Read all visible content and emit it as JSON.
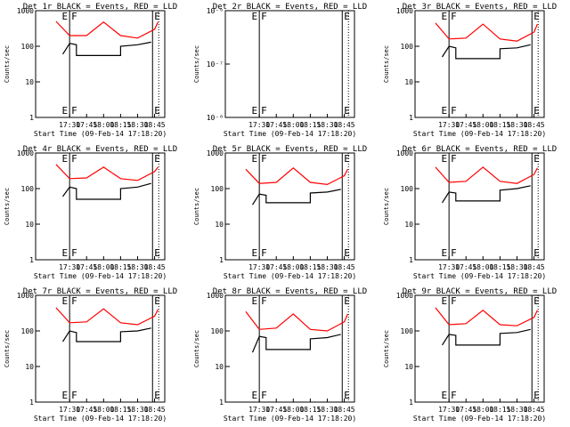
{
  "figure": {
    "common_xlabel": "Start Time (09-Feb-14 17:18:20)",
    "common_ylabel": "Counts/sec"
  },
  "chart_data": [
    {
      "type": "line",
      "title": "Det 1r BLACK = Events, RED = LLD",
      "ylim": [
        1,
        1000
      ],
      "yscale": "log",
      "yticks": [
        1,
        10,
        100,
        1000
      ],
      "ytick_labels": [
        "1",
        "10",
        "100",
        "1000"
      ],
      "x_ticks": [
        "17:30",
        "17:45",
        "18:00",
        "18:15",
        "18:30",
        "18:45"
      ],
      "flags": [
        "E",
        "F",
        "E"
      ],
      "series": [
        {
          "color": "#ff0000",
          "kind": "lld",
          "x": [
            17.3,
            17.5,
            17.75,
            18.0,
            18.25,
            18.5,
            18.75,
            18.8
          ],
          "y": [
            500,
            200,
            200,
            480,
            200,
            170,
            300,
            480
          ]
        },
        {
          "color": "#000000",
          "kind": "events",
          "x": [
            17.4,
            17.5,
            17.6,
            17.6,
            18.25,
            18.25,
            18.5,
            18.7
          ],
          "y": [
            60,
            120,
            110,
            55,
            55,
            100,
            110,
            130
          ]
        }
      ]
    },
    {
      "type": "line",
      "title": "Det 2r BLACK = Events, RED = LLD",
      "ylim": [
        1e-08,
        1e-06
      ],
      "yscale": "log",
      "yticks": [
        1e-08,
        1e-07,
        1e-06
      ],
      "ytick_labels": [
        "10⁻⁸",
        "10⁻⁷",
        "10⁻⁶"
      ],
      "x_ticks": [
        "17:30",
        "17:45",
        "18:00",
        "18:15",
        "18:30",
        "18:45"
      ],
      "flags": [
        "E",
        "F",
        "E"
      ],
      "series": []
    },
    {
      "type": "line",
      "title": "Det 3r BLACK = Events, RED = LLD",
      "ylim": [
        1,
        1000
      ],
      "yscale": "log",
      "yticks": [
        1,
        10,
        100,
        1000
      ],
      "ytick_labels": [
        "1",
        "10",
        "100",
        "1000"
      ],
      "x_ticks": [
        "17:30",
        "17:45",
        "18:00",
        "18:15",
        "18:30",
        "18:45"
      ],
      "flags": [
        "E",
        "F",
        "E"
      ],
      "series": [
        {
          "color": "#ff0000",
          "kind": "lld",
          "x": [
            17.3,
            17.5,
            17.75,
            18.0,
            18.25,
            18.5,
            18.75,
            18.8
          ],
          "y": [
            450,
            160,
            170,
            420,
            160,
            140,
            250,
            420
          ]
        },
        {
          "color": "#000000",
          "kind": "events",
          "x": [
            17.4,
            17.5,
            17.6,
            17.6,
            18.25,
            18.25,
            18.5,
            18.7
          ],
          "y": [
            50,
            100,
            90,
            45,
            45,
            85,
            90,
            110
          ]
        }
      ]
    },
    {
      "type": "line",
      "title": "Det 4r BLACK = Events, RED = LLD",
      "ylim": [
        1,
        1000
      ],
      "yscale": "log",
      "yticks": [
        1,
        10,
        100,
        1000
      ],
      "ytick_labels": [
        "1",
        "10",
        "100",
        "1000"
      ],
      "x_ticks": [
        "17:30",
        "17:45",
        "18:00",
        "18:15",
        "18:30",
        "18:45"
      ],
      "flags": [
        "E",
        "F",
        "E"
      ],
      "series": [
        {
          "color": "#ff0000",
          "kind": "lld",
          "x": [
            17.3,
            17.5,
            17.75,
            18.0,
            18.25,
            18.5,
            18.75,
            18.8
          ],
          "y": [
            480,
            190,
            200,
            400,
            190,
            170,
            300,
            400
          ]
        },
        {
          "color": "#000000",
          "kind": "events",
          "x": [
            17.4,
            17.5,
            17.6,
            17.6,
            18.25,
            18.25,
            18.5,
            18.7
          ],
          "y": [
            60,
            110,
            100,
            50,
            50,
            100,
            110,
            140
          ]
        }
      ]
    },
    {
      "type": "line",
      "title": "Det 5r BLACK = Events, RED = LLD",
      "ylim": [
        1,
        1000
      ],
      "yscale": "log",
      "yticks": [
        1,
        10,
        100,
        1000
      ],
      "ytick_labels": [
        "1",
        "10",
        "100",
        "1000"
      ],
      "x_ticks": [
        "17:30",
        "17:45",
        "18:00",
        "18:15",
        "18:30",
        "18:45"
      ],
      "flags": [
        "E",
        "F",
        "E"
      ],
      "series": [
        {
          "color": "#ff0000",
          "kind": "lld",
          "x": [
            17.3,
            17.5,
            17.75,
            18.0,
            18.25,
            18.5,
            18.75,
            18.8
          ],
          "y": [
            350,
            140,
            150,
            380,
            150,
            130,
            230,
            350
          ]
        },
        {
          "color": "#000000",
          "kind": "events",
          "x": [
            17.4,
            17.5,
            17.6,
            17.6,
            18.25,
            18.25,
            18.5,
            18.7
          ],
          "y": [
            35,
            70,
            65,
            40,
            40,
            75,
            80,
            95
          ]
        }
      ]
    },
    {
      "type": "line",
      "title": "Det 6r BLACK = Events, RED = LLD",
      "ylim": [
        1,
        1000
      ],
      "yscale": "log",
      "yticks": [
        1,
        10,
        100,
        1000
      ],
      "ytick_labels": [
        "1",
        "10",
        "100",
        "1000"
      ],
      "x_ticks": [
        "17:30",
        "17:45",
        "18:00",
        "18:15",
        "18:30",
        "18:45"
      ],
      "flags": [
        "E",
        "F",
        "E"
      ],
      "series": [
        {
          "color": "#ff0000",
          "kind": "lld",
          "x": [
            17.3,
            17.5,
            17.75,
            18.0,
            18.25,
            18.5,
            18.75,
            18.8
          ],
          "y": [
            400,
            150,
            160,
            400,
            160,
            140,
            250,
            380
          ]
        },
        {
          "color": "#000000",
          "kind": "events",
          "x": [
            17.4,
            17.5,
            17.6,
            17.6,
            18.25,
            18.25,
            18.5,
            18.7
          ],
          "y": [
            40,
            80,
            75,
            45,
            45,
            90,
            100,
            120
          ]
        }
      ]
    },
    {
      "type": "line",
      "title": "Det 7r BLACK = Events, RED = LLD",
      "ylim": [
        1,
        1000
      ],
      "yscale": "log",
      "yticks": [
        1,
        10,
        100,
        1000
      ],
      "ytick_labels": [
        "1",
        "10",
        "100",
        "1000"
      ],
      "x_ticks": [
        "17:30",
        "17:45",
        "18:00",
        "18:15",
        "18:30",
        "18:45"
      ],
      "flags": [
        "E",
        "F",
        "E"
      ],
      "series": [
        {
          "color": "#ff0000",
          "kind": "lld",
          "x": [
            17.3,
            17.5,
            17.75,
            18.0,
            18.25,
            18.5,
            18.75,
            18.8
          ],
          "y": [
            450,
            170,
            180,
            420,
            170,
            150,
            260,
            400
          ]
        },
        {
          "color": "#000000",
          "kind": "events",
          "x": [
            17.4,
            17.5,
            17.6,
            17.6,
            18.25,
            18.25,
            18.5,
            18.7
          ],
          "y": [
            50,
            100,
            90,
            50,
            50,
            95,
            100,
            120
          ]
        }
      ]
    },
    {
      "type": "line",
      "title": "Det 8r BLACK = Events, RED = LLD",
      "ylim": [
        1,
        1000
      ],
      "yscale": "log",
      "yticks": [
        1,
        10,
        100,
        1000
      ],
      "ytick_labels": [
        "1",
        "10",
        "100",
        "1000"
      ],
      "x_ticks": [
        "17:30",
        "17:45",
        "18:00",
        "18:15",
        "18:30",
        "18:45"
      ],
      "flags": [
        "E",
        "F",
        "E"
      ],
      "series": [
        {
          "color": "#ff0000",
          "kind": "lld",
          "x": [
            17.3,
            17.5,
            17.75,
            18.0,
            18.25,
            18.5,
            18.75,
            18.8
          ],
          "y": [
            350,
            110,
            120,
            300,
            110,
            100,
            180,
            300
          ]
        },
        {
          "color": "#000000",
          "kind": "events",
          "x": [
            17.4,
            17.5,
            17.6,
            17.6,
            18.25,
            18.25,
            18.5,
            18.7
          ],
          "y": [
            25,
            70,
            65,
            30,
            30,
            60,
            65,
            80
          ]
        }
      ]
    },
    {
      "type": "line",
      "title": "Det 9r BLACK = Events, RED = LLD",
      "ylim": [
        1,
        1000
      ],
      "yscale": "log",
      "yticks": [
        1,
        10,
        100,
        1000
      ],
      "ytick_labels": [
        "1",
        "10",
        "100",
        "1000"
      ],
      "x_ticks": [
        "17:30",
        "17:45",
        "18:00",
        "18:15",
        "18:30",
        "18:45"
      ],
      "flags": [
        "E",
        "F",
        "E"
      ],
      "series": [
        {
          "color": "#ff0000",
          "kind": "lld",
          "x": [
            17.3,
            17.5,
            17.75,
            18.0,
            18.25,
            18.5,
            18.75,
            18.8
          ],
          "y": [
            450,
            150,
            160,
            380,
            150,
            140,
            240,
            380
          ]
        },
        {
          "color": "#000000",
          "kind": "events",
          "x": [
            17.4,
            17.5,
            17.6,
            17.6,
            18.25,
            18.25,
            18.5,
            18.7
          ],
          "y": [
            40,
            80,
            75,
            40,
            40,
            85,
            90,
            110
          ]
        }
      ]
    }
  ]
}
